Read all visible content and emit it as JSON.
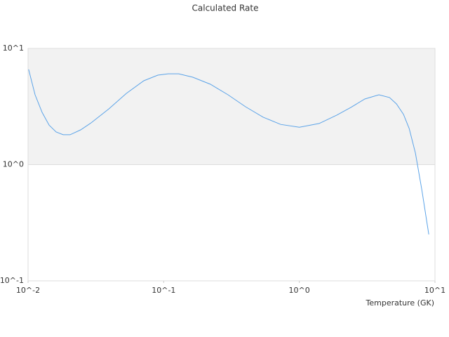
{
  "chart_data": {
    "type": "line",
    "title": "Calculated Rate",
    "x_label": "Temperature (GK)",
    "log_x": true,
    "log_y": true,
    "xlim": [
      0.01,
      10
    ],
    "ylim": [
      0.1,
      10
    ],
    "xticks": [
      {
        "value": 0.01,
        "label": "10^-2"
      },
      {
        "value": 0.1,
        "label": "10^-1"
      },
      {
        "value": 1,
        "label": "10^0"
      },
      {
        "value": 10,
        "label": "10^1"
      }
    ],
    "yticks": [
      {
        "value": 0.1,
        "label": "10^-1"
      },
      {
        "value": 1,
        "label": "10^0"
      },
      {
        "value": 10,
        "label": "10^1"
      }
    ],
    "shaded_band": [
      1,
      10
    ],
    "shade_color": "#f2f2f2",
    "x": [
      0.0101,
      0.01127,
      0.01269,
      0.01429,
      0.0161,
      0.01815,
      0.0204,
      0.0244,
      0.0292,
      0.0394,
      0.053,
      0.0714,
      0.0906,
      0.108,
      0.129,
      0.164,
      0.221,
      0.298,
      0.401,
      0.541,
      0.728,
      1.0,
      1.4,
      1.89,
      2.4,
      3.04,
      3.86,
      4.62,
      5.2,
      5.86,
      6.45,
      7.17,
      7.99,
      9.0
    ],
    "series": [
      {
        "color": "#5ba3e8",
        "values": [
          6.6,
          3.99,
          2.82,
          2.19,
          1.91,
          1.81,
          1.81,
          1.99,
          2.29,
          3.02,
          4.1,
          5.27,
          5.89,
          6.05,
          6.05,
          5.65,
          4.92,
          3.99,
          3.15,
          2.56,
          2.22,
          2.1,
          2.26,
          2.67,
          3.11,
          3.67,
          3.99,
          3.78,
          3.33,
          2.71,
          2.05,
          1.26,
          0.611,
          0.251
        ]
      }
    ]
  }
}
